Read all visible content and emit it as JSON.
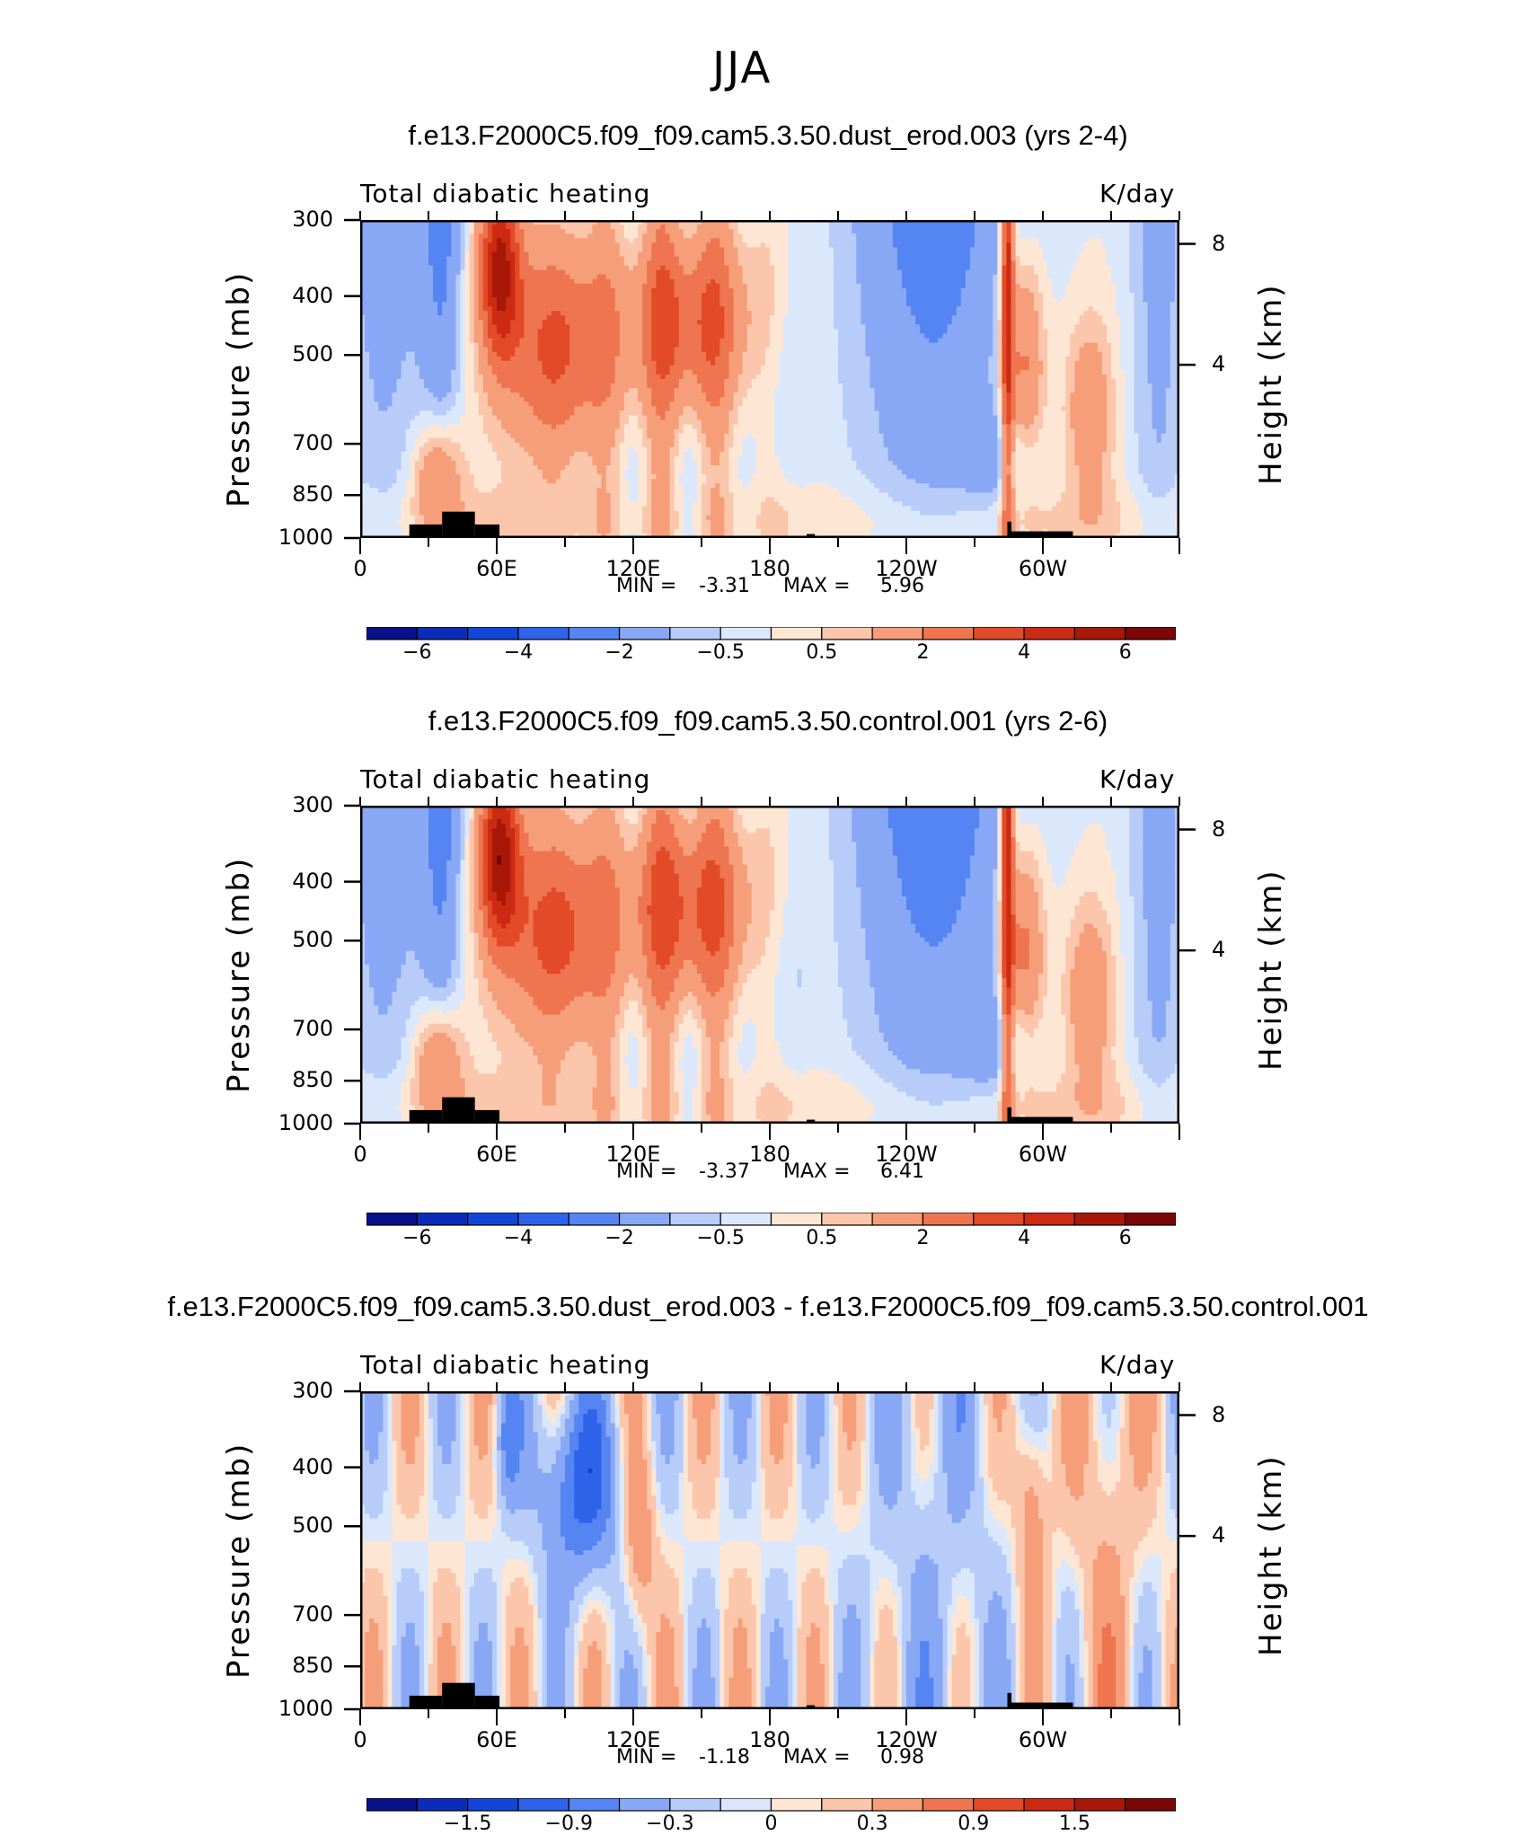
{
  "page_title": "JJA",
  "colors": {
    "palette": [
      "#08108a",
      "#0b2cb8",
      "#1545d8",
      "#2f63ea",
      "#5585f2",
      "#88a8f6",
      "#b8ccf9",
      "#dbe8fc",
      "#fde6d4",
      "#fbc6ab",
      "#f69e79",
      "#ee7550",
      "#e34a28",
      "#cc2a12",
      "#a81808",
      "#7c0606"
    ],
    "topo": "#000000",
    "frame": "#000000"
  },
  "chart_data": [
    {
      "type": "heatmap",
      "title": "f.e13.F2000C5.f09_f09.cam5.3.50.dust_erod.003 (yrs 2-4)",
      "left_label": "Total diabatic heating",
      "right_label": "K/day",
      "ylabel": "Pressure (mb)",
      "ylabel_right": "Height (km)",
      "y_ticks": [
        "300",
        "400",
        "500",
        "700",
        "850",
        "1000"
      ],
      "y_right_ticks": [
        "8",
        "4"
      ],
      "x_ticks": [
        "0",
        "60E",
        "120E",
        "180",
        "120W",
        "60W"
      ],
      "xlim_deg": [
        0,
        360
      ],
      "ylim_mb": [
        1000,
        300
      ],
      "stats": {
        "min_label": "MIN =",
        "min": "-3.31",
        "max_label": "MAX =",
        "max": "5.96"
      },
      "colorbar": {
        "ticks": [
          "-6",
          "-4",
          "-2",
          "-0.5",
          "0.5",
          "2",
          "4",
          "6"
        ],
        "levels": [
          -7,
          -6,
          -5,
          -4,
          -3,
          -2,
          -1,
          -0.5,
          0,
          0.5,
          1,
          2,
          3,
          4,
          5,
          6,
          7
        ]
      }
    },
    {
      "type": "heatmap",
      "title": "f.e13.F2000C5.f09_f09.cam5.3.50.control.001 (yrs 2-6)",
      "left_label": "Total diabatic heating",
      "right_label": "K/day",
      "ylabel": "Pressure (mb)",
      "ylabel_right": "Height (km)",
      "y_ticks": [
        "300",
        "400",
        "500",
        "700",
        "850",
        "1000"
      ],
      "y_right_ticks": [
        "8",
        "4"
      ],
      "x_ticks": [
        "0",
        "60E",
        "120E",
        "180",
        "120W",
        "60W"
      ],
      "xlim_deg": [
        0,
        360
      ],
      "ylim_mb": [
        1000,
        300
      ],
      "stats": {
        "min_label": "MIN =",
        "min": "-3.37",
        "max_label": "MAX =",
        "max": "6.41"
      },
      "colorbar": {
        "ticks": [
          "-6",
          "-4",
          "-2",
          "-0.5",
          "0.5",
          "2",
          "4",
          "6"
        ],
        "levels": [
          -7,
          -6,
          -5,
          -4,
          -3,
          -2,
          -1,
          -0.5,
          0,
          0.5,
          1,
          2,
          3,
          4,
          5,
          6,
          7
        ]
      }
    },
    {
      "type": "heatmap",
      "title": "f.e13.F2000C5.f09_f09.cam5.3.50.dust_erod.003 - f.e13.F2000C5.f09_f09.cam5.3.50.control.001",
      "left_label": "Total diabatic heating",
      "right_label": "K/day",
      "ylabel": "Pressure (mb)",
      "ylabel_right": "Height (km)",
      "y_ticks": [
        "300",
        "400",
        "500",
        "700",
        "850",
        "1000"
      ],
      "y_right_ticks": [
        "8",
        "4"
      ],
      "x_ticks": [
        "0",
        "60E",
        "120E",
        "180",
        "120W",
        "60W"
      ],
      "xlim_deg": [
        0,
        360
      ],
      "ylim_mb": [
        1000,
        300
      ],
      "stats": {
        "min_label": "MIN =",
        "min": "-1.18",
        "max_label": "MAX =",
        "max": "0.98"
      },
      "colorbar": {
        "ticks": [
          "-1.5",
          "-0.9",
          "-0.3",
          "0",
          "0.3",
          "0.9",
          "1.5"
        ],
        "levels": [
          -2.1,
          -1.8,
          -1.5,
          -1.2,
          -0.9,
          -0.6,
          -0.3,
          -0.1,
          0,
          0.1,
          0.3,
          0.6,
          0.9,
          1.2,
          1.5,
          1.8,
          2.1
        ]
      }
    }
  ]
}
